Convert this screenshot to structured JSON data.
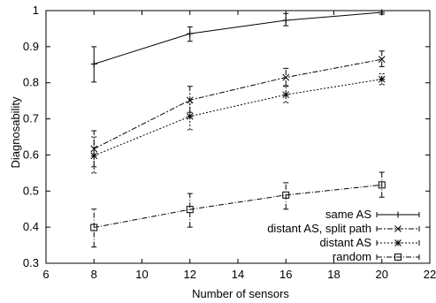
{
  "chart_data": {
    "type": "line",
    "title": "",
    "xlabel": "Number of sensors",
    "ylabel": "Diagnosability",
    "xlim": [
      6,
      22
    ],
    "ylim": [
      0.3,
      1.0
    ],
    "xticks": [
      "6",
      "8",
      "10",
      "12",
      "14",
      "16",
      "18",
      "20",
      "22"
    ],
    "yticks": [
      "0.3",
      "0.4",
      "0.5",
      "0.6",
      "0.7",
      "0.8",
      "0.9",
      "1"
    ],
    "grid": false,
    "legend_position": "bottom-right",
    "series": [
      {
        "name": "same AS",
        "marker": "plus",
        "dash": "",
        "points": [
          {
            "x": 8,
            "y": 0.852,
            "lo": 0.802,
            "hi": 0.9
          },
          {
            "x": 12,
            "y": 0.936,
            "lo": 0.915,
            "hi": 0.955
          },
          {
            "x": 16,
            "y": 0.973,
            "lo": 0.958,
            "hi": 0.992
          },
          {
            "x": 20,
            "y": 0.995,
            "lo": 0.99,
            "hi": 1.0
          }
        ]
      },
      {
        "name": "distant AS, split path",
        "marker": "cross",
        "dash": "6,2,2,2",
        "points": [
          {
            "x": 8,
            "y": 0.617,
            "lo": 0.567,
            "hi": 0.667
          },
          {
            "x": 12,
            "y": 0.752,
            "lo": 0.718,
            "hi": 0.79
          },
          {
            "x": 16,
            "y": 0.815,
            "lo": 0.792,
            "hi": 0.84
          },
          {
            "x": 20,
            "y": 0.865,
            "lo": 0.845,
            "hi": 0.888
          }
        ]
      },
      {
        "name": "distant AS",
        "marker": "star",
        "dash": "2,2",
        "points": [
          {
            "x": 8,
            "y": 0.598,
            "lo": 0.55,
            "hi": 0.65
          },
          {
            "x": 12,
            "y": 0.707,
            "lo": 0.67,
            "hi": 0.745
          },
          {
            "x": 16,
            "y": 0.767,
            "lo": 0.745,
            "hi": 0.79
          },
          {
            "x": 20,
            "y": 0.81,
            "lo": 0.795,
            "hi": 0.825
          }
        ]
      },
      {
        "name": "random",
        "marker": "square",
        "dash": "6,2,1,2",
        "points": [
          {
            "x": 8,
            "y": 0.399,
            "lo": 0.345,
            "hi": 0.45
          },
          {
            "x": 12,
            "y": 0.449,
            "lo": 0.4,
            "hi": 0.493
          },
          {
            "x": 16,
            "y": 0.489,
            "lo": 0.45,
            "hi": 0.523
          },
          {
            "x": 20,
            "y": 0.517,
            "lo": 0.483,
            "hi": 0.552
          }
        ]
      }
    ]
  }
}
